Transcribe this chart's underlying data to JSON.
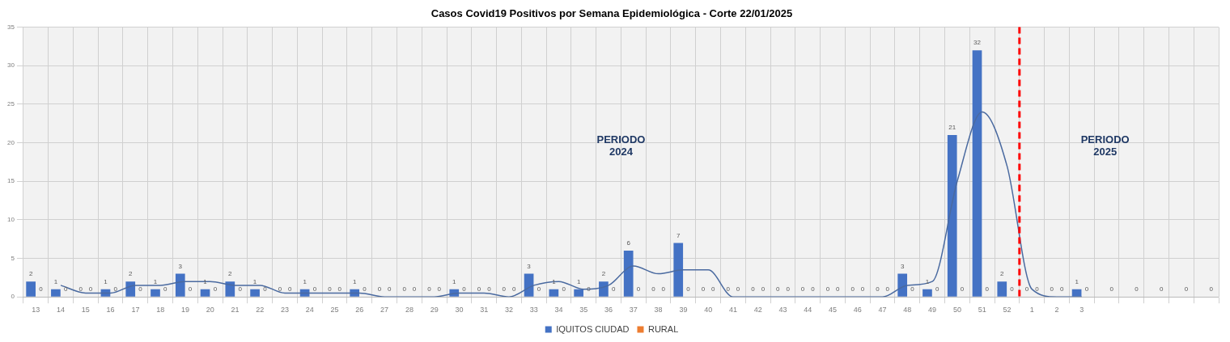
{
  "chart_data": {
    "type": "bar",
    "title": "Casos Covid19 Positivos por Semana Epidemiológica - Corte 22/01/2025",
    "categories": [
      "13",
      "14",
      "15",
      "16",
      "17",
      "18",
      "19",
      "20",
      "21",
      "22",
      "23",
      "24",
      "25",
      "26",
      "27",
      "28",
      "29",
      "30",
      "31",
      "32",
      "33",
      "34",
      "35",
      "36",
      "37",
      "38",
      "39",
      "40",
      "41",
      "42",
      "43",
      "44",
      "45",
      "46",
      "47",
      "48",
      "49",
      "50",
      "51",
      "52",
      "1",
      "2",
      "3",
      null,
      null,
      null,
      null,
      null
    ],
    "series": [
      {
        "name": "IQUITOS CIUDAD",
        "color": "#4472c4",
        "values": [
          2,
          1,
          0,
          1,
          2,
          1,
          3,
          1,
          2,
          1,
          0,
          1,
          0,
          1,
          0,
          0,
          0,
          1,
          0,
          0,
          3,
          1,
          1,
          2,
          6,
          0,
          7,
          0,
          0,
          0,
          0,
          0,
          0,
          0,
          0,
          3,
          1,
          21,
          32,
          2,
          0,
          0,
          1,
          null,
          null,
          null,
          null,
          null
        ]
      },
      {
        "name": "RURAL",
        "color": "#ed7d31",
        "values": [
          0,
          0,
          0,
          0,
          0,
          0,
          0,
          0,
          0,
          0,
          0,
          0,
          0,
          0,
          0,
          0,
          0,
          0,
          0,
          0,
          0,
          0,
          0,
          0,
          0,
          0,
          0,
          0,
          0,
          0,
          0,
          0,
          0,
          0,
          0,
          0,
          0,
          0,
          0,
          0,
          0,
          0,
          0,
          0,
          0,
          0,
          0,
          0
        ]
      },
      {
        "type": "line",
        "color": "#4a6aa0",
        "values": [
          null,
          1.5,
          0.5,
          0.5,
          1.5,
          1.5,
          2,
          2,
          1.5,
          1.5,
          0.5,
          0.5,
          0.5,
          0.5,
          0,
          0,
          0,
          0.5,
          0.5,
          0,
          1.5,
          2,
          1,
          1.5,
          4,
          3,
          3.5,
          3.5,
          0,
          0,
          0,
          0,
          0,
          0,
          0,
          1.5,
          2,
          15,
          24,
          17,
          1,
          0,
          0,
          null,
          null,
          null,
          null,
          null
        ],
        "value_labels": [
          null,
          null,
          null,
          null,
          null,
          null,
          null,
          null,
          null,
          null,
          null,
          null,
          null,
          null,
          null,
          null,
          null,
          null,
          null,
          null,
          null,
          null,
          null,
          null,
          null,
          null,
          null,
          null,
          null,
          null,
          null,
          null,
          null,
          null,
          null,
          null,
          null,
          null,
          null,
          null,
          null,
          null,
          null,
          null,
          null,
          null,
          null,
          null
        ]
      }
    ],
    "ylim": [
      0,
      35
    ],
    "yticks": [
      0,
      5,
      10,
      15,
      20,
      25,
      30,
      35
    ],
    "grid": true,
    "legend": "bottom",
    "data_labels": true,
    "ref_lines": [
      {
        "axis": "x",
        "value": "1",
        "color": "#ff0000",
        "line_style": "dashed"
      }
    ],
    "annotations": [
      "PERIODO\n2024",
      "PERIODO\n2025"
    ]
  }
}
